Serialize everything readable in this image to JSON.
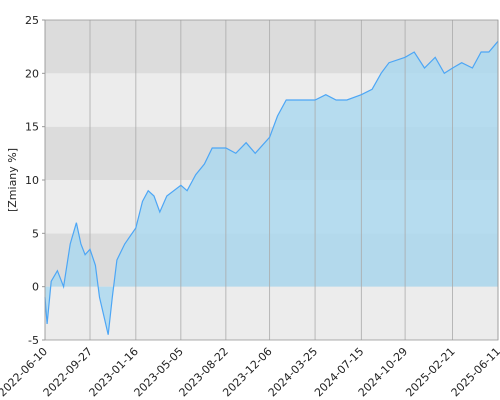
{
  "chart_data": {
    "type": "area",
    "ylabel": "[Zmiany %]",
    "x": [
      "2022-06-10",
      "2022-06-15",
      "2022-06-25",
      "2022-07-10",
      "2022-07-25",
      "2022-08-10",
      "2022-08-25",
      "2022-09-05",
      "2022-09-15",
      "2022-09-27",
      "2022-10-10",
      "2022-10-20",
      "2022-11-01",
      "2022-11-10",
      "2022-11-20",
      "2022-12-01",
      "2022-12-20",
      "2023-01-16",
      "2023-02-01",
      "2023-02-15",
      "2023-03-01",
      "2023-03-15",
      "2023-04-01",
      "2023-05-05",
      "2023-05-20",
      "2023-06-10",
      "2023-07-01",
      "2023-07-20",
      "2023-08-22",
      "2023-09-15",
      "2023-10-10",
      "2023-11-01",
      "2023-12-06",
      "2023-12-25",
      "2024-01-15",
      "2024-02-10",
      "2024-03-25",
      "2024-04-20",
      "2024-05-15",
      "2024-06-10",
      "2024-07-15",
      "2024-08-10",
      "2024-09-01",
      "2024-09-20",
      "2024-10-29",
      "2024-11-20",
      "2024-12-15",
      "2025-01-10",
      "2025-02-01",
      "2025-02-21",
      "2025-03-15",
      "2025-04-10",
      "2025-05-01",
      "2025-05-20",
      "2025-06-11"
    ],
    "series": [
      {
        "color": "#4da6f5",
        "fill": "#a9d8f0",
        "values": [
          -1,
          -3.5,
          0.5,
          1.5,
          0,
          4,
          6,
          4,
          3,
          3.5,
          2,
          -1,
          -3,
          -4.5,
          -1,
          2.5,
          4,
          5.5,
          8,
          9,
          8.5,
          7,
          8.5,
          9.5,
          9,
          10.5,
          11.5,
          13,
          13,
          12.5,
          13.5,
          12.5,
          14,
          16,
          17.5,
          17.5,
          17.5,
          18,
          17.5,
          17.5,
          18,
          18.5,
          20,
          21,
          21.5,
          22,
          20.5,
          21.5,
          20,
          20.5,
          21,
          20.5,
          22,
          22,
          23
        ]
      }
    ],
    "xlim": [
      "2022-06-10",
      "2025-06-11"
    ],
    "xticks": [
      "2022-06-10",
      "2022-09-27",
      "2023-01-16",
      "2023-05-05",
      "2023-08-22",
      "2023-12-06",
      "2024-03-25",
      "2024-07-15",
      "2024-10-29",
      "2025-02-21",
      "2025-06-11"
    ],
    "ylim": [
      -5,
      25
    ],
    "yticks": [
      -5,
      0,
      5,
      10,
      15,
      20,
      25
    ],
    "grid": true,
    "band_colors": [
      "#ececec",
      "#dcdcdc"
    ]
  }
}
